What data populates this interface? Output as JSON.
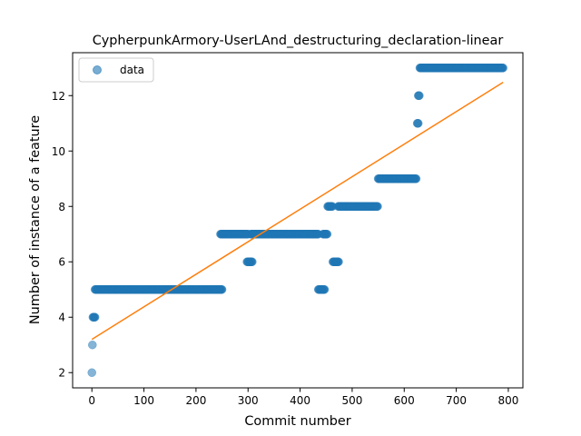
{
  "chart_data": {
    "type": "scatter",
    "title": "CypherpunkArmory-UserLAnd_destructuring_declaration-linear",
    "xlabel": "Commit number",
    "ylabel": "Number of instance of a feature",
    "xlim": [
      -37,
      828
    ],
    "ylim": [
      1.45,
      13.55
    ],
    "xticks": [
      0,
      100,
      200,
      300,
      400,
      500,
      600,
      700,
      800
    ],
    "yticks": [
      2,
      4,
      6,
      8,
      10,
      12
    ],
    "legend": {
      "placement": "top-left",
      "entries": [
        "data"
      ]
    },
    "grid": false,
    "colors": {
      "data": "#1f77b4",
      "fit": "#ff7f0e"
    },
    "series": [
      {
        "name": "data",
        "kind": "scatter",
        "segments": [
          {
            "x": [
              0,
              0
            ],
            "y": 2
          },
          {
            "x": [
              1,
              1
            ],
            "y": 3
          },
          {
            "x": [
              2,
              6
            ],
            "y": 4
          },
          {
            "x": [
              6,
              250
            ],
            "y": 5
          },
          {
            "x": [
              247,
              300
            ],
            "y": 7
          },
          {
            "x": [
              298,
              308
            ],
            "y": 6
          },
          {
            "x": [
              305,
              435
            ],
            "y": 7
          },
          {
            "x": [
              435,
              447
            ],
            "y": 5
          },
          {
            "x": [
              444,
              452
            ],
            "y": 7
          },
          {
            "x": [
              453,
              462
            ],
            "y": 8
          },
          {
            "x": [
              463,
              474
            ],
            "y": 6
          },
          {
            "x": [
              473,
              549
            ],
            "y": 8
          },
          {
            "x": [
              550,
              623
            ],
            "y": 9
          },
          {
            "x": [
              625,
              627
            ],
            "y": 11
          },
          {
            "x": [
              627,
              629
            ],
            "y": 12
          },
          {
            "x": [
              630,
              790
            ],
            "y": 13
          }
        ]
      },
      {
        "kind": "line",
        "x": [
          0,
          790
        ],
        "y": [
          3.2,
          12.48
        ]
      }
    ]
  }
}
